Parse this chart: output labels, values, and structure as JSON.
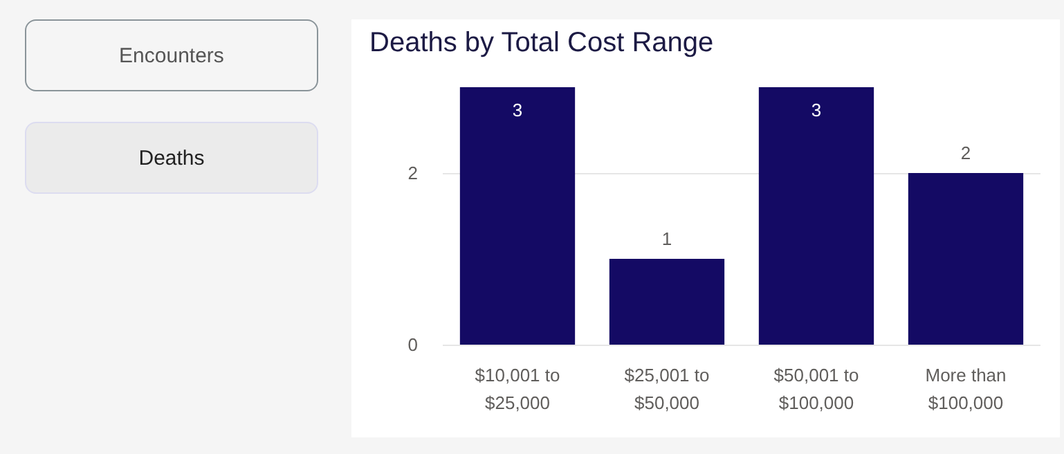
{
  "chart_data": [
    {
      "type": "other",
      "annotations": [
        "Encounters",
        "Deaths"
      ]
    },
    {
      "type": "bar",
      "title": "Deaths by Total Cost Range",
      "categories": [
        "$10,001 to $25,000",
        "$25,001 to $50,000",
        "$50,001 to $100,000",
        "More than $100,000"
      ],
      "values": [
        3,
        1,
        3,
        2
      ],
      "color": "#140a64",
      "ylim": [
        0,
        3
      ],
      "yticks": [
        0,
        2
      ],
      "grid": "y",
      "data_labels": true
    }
  ]
}
